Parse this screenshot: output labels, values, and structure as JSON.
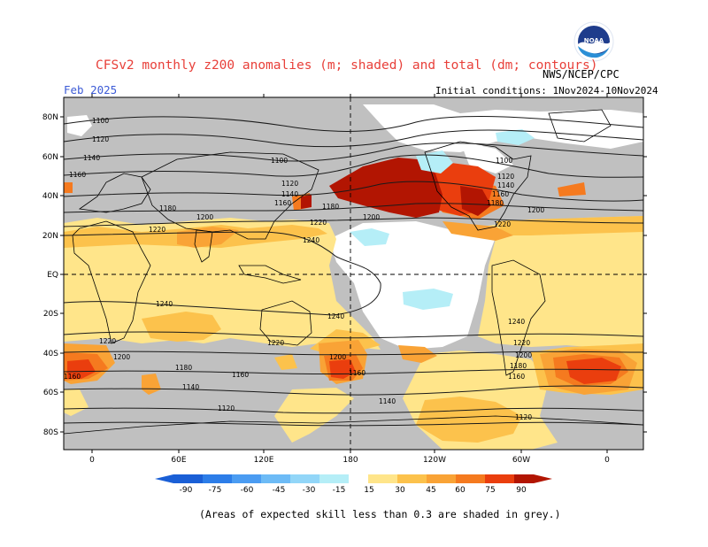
{
  "header": {
    "title": "CFSv2 monthly z200 anomalies (m; shaded) and total (dm; contours)",
    "month": "Feb 2025",
    "agency": "NWS/NCEP/CPC",
    "initial_conditions": "Initial conditions: 1Nov2024-10Nov2024",
    "logo_text": "NOAA",
    "logo_icon": "noaa-logo-icon"
  },
  "map": {
    "lat_labels": [
      "80N",
      "60N",
      "40N",
      "20N",
      "EQ",
      "20S",
      "40S",
      "60S",
      "80S"
    ],
    "lon_labels": [
      "0",
      "60E",
      "120E",
      "180",
      "120W",
      "60W",
      "0"
    ],
    "contour_labels": [
      "1100",
      "1120",
      "1140",
      "1160",
      "1180",
      "1200",
      "1220",
      "1240"
    ],
    "colors": {
      "grey_mask": "#c0c0c0",
      "pos_15": "#ffe58a",
      "pos_30": "#fcc24c",
      "pos_45": "#f9a336",
      "pos_60": "#f57a1f",
      "pos_75": "#ea3e0e",
      "pos_90": "#b21502",
      "neg_15": "#b5eef7"
    }
  },
  "colorbar": {
    "ticks": [
      "-90",
      "-75",
      "-60",
      "-45",
      "-30",
      "-15",
      "15",
      "30",
      "45",
      "60",
      "75",
      "90"
    ],
    "colors": [
      "#1a5fd6",
      "#2c7de8",
      "#4b9cf2",
      "#6dbbf6",
      "#92d6f8",
      "#b5eef7",
      "#ffffff",
      "#ffe58a",
      "#fcc24c",
      "#f9a336",
      "#f57a1f",
      "#ea3e0e",
      "#b21502"
    ]
  },
  "footnote": "(Areas of expected skill less than 0.3 are shaded in grey.)"
}
